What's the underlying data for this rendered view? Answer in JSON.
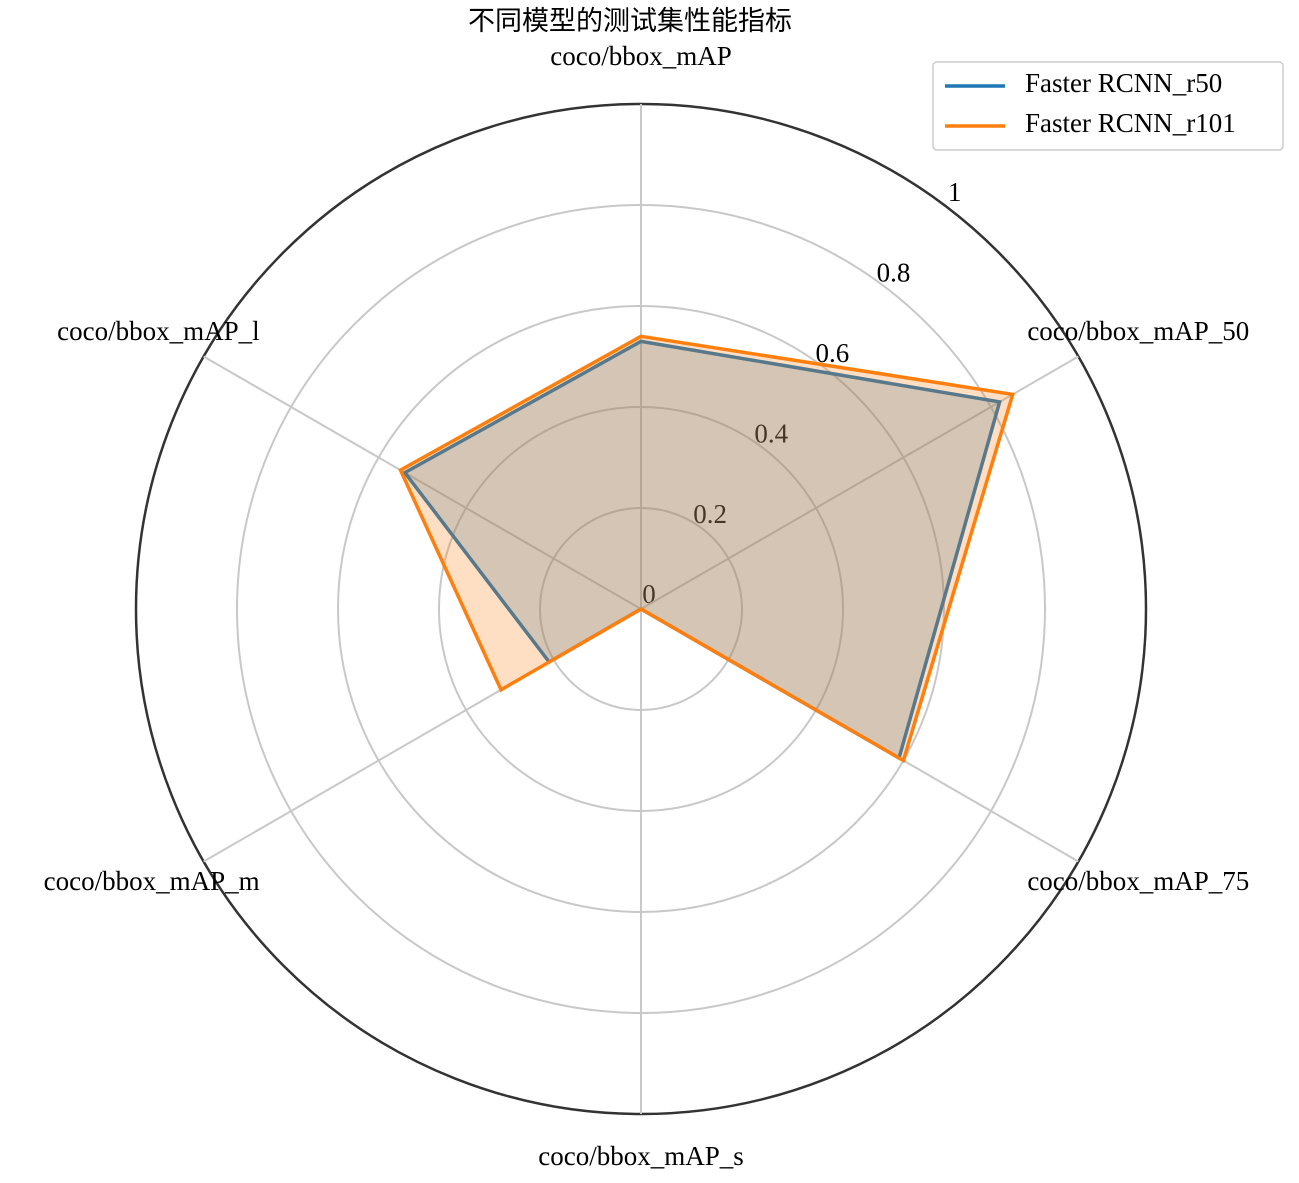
{
  "chart_data": {
    "type": "radar",
    "title": "不同模型的测试集性能指标",
    "categories": [
      "coco/bbox_mAP",
      "coco/bbox_mAP_50",
      "coco/bbox_mAP_75",
      "coco/bbox_mAP_s",
      "coco/bbox_mAP_m",
      "coco/bbox_mAP_l"
    ],
    "series": [
      {
        "name": "Faster RCNN_r50",
        "color": "#1f77b4",
        "values": [
          0.53,
          0.82,
          0.59,
          0,
          0.21,
          0.54
        ]
      },
      {
        "name": "Faster RCNN_r101",
        "color": "#ff7f0e",
        "values": [
          0.54,
          0.85,
          0.6,
          0,
          0.32,
          0.55
        ]
      }
    ],
    "ylim": [
      0,
      1
    ],
    "yticks": [
      0,
      0.2,
      0.4,
      0.6,
      0.8,
      1
    ],
    "grid": true,
    "legend": "upper right"
  }
}
